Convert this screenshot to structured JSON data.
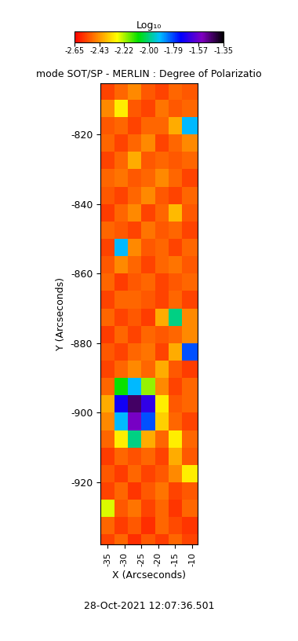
{
  "chart_data": {
    "type": "heatmap",
    "title": "mode SOT/SP - MERLIN : Degree of Polarizatio",
    "xlabel": "X (Arcseconds)",
    "ylabel": "Y (Arcseconds)",
    "annotation": "28-Oct-2021 12:07:36.501",
    "xlim": [
      -37.1,
      -8.4
    ],
    "ylim": [
      -937.8,
      -805.3
    ],
    "xticks": [
      -35,
      -30,
      -25,
      -20,
      -15,
      -10
    ],
    "yticks": [
      -820,
      -840,
      -860,
      -880,
      -900,
      -920
    ],
    "x_edges": [
      -37.1,
      -33,
      -29,
      -25,
      -21,
      -17,
      -13,
      -8.4
    ],
    "y_edges": [
      -937.8,
      -935,
      -930,
      -925,
      -920,
      -915,
      -910,
      -905,
      -900,
      -895,
      -890,
      -885,
      -880,
      -875,
      -870,
      -865,
      -860,
      -855,
      -850,
      -845,
      -840,
      -835,
      -830,
      -825,
      -820,
      -815,
      -810,
      -805.3
    ],
    "values": [
      [
        -2.55,
        -2.5,
        -2.58,
        -2.52,
        -2.56,
        -2.5,
        -2.55
      ],
      [
        -2.5,
        -2.56,
        -2.52,
        -2.58,
        -2.5,
        -2.54,
        -2.57
      ],
      [
        -2.25,
        -2.52,
        -2.48,
        -2.55,
        -2.5,
        -2.57,
        -2.5
      ],
      [
        -2.55,
        -2.5,
        -2.57,
        -2.52,
        -2.48,
        -2.55,
        -2.52
      ],
      [
        -2.52,
        -2.56,
        -2.5,
        -2.55,
        -2.52,
        -2.45,
        -2.3
      ],
      [
        -2.56,
        -2.5,
        -2.53,
        -2.5,
        -2.55,
        -2.4,
        -2.52
      ],
      [
        -2.5,
        -2.3,
        -2.0,
        -2.4,
        -2.5,
        -2.3,
        -2.5
      ],
      [
        -2.45,
        -1.9,
        -1.55,
        -1.8,
        -2.35,
        -2.5,
        -2.55
      ],
      [
        -2.4,
        -1.7,
        -1.45,
        -1.65,
        -2.3,
        -2.52,
        -2.5
      ],
      [
        -2.5,
        -2.1,
        -1.9,
        -2.2,
        -2.45,
        -2.55,
        -2.5
      ],
      [
        -2.55,
        -2.5,
        -2.45,
        -2.5,
        -2.4,
        -2.52,
        -2.56
      ],
      [
        -2.52,
        -2.55,
        -2.5,
        -2.48,
        -2.55,
        -2.4,
        -1.8
      ],
      [
        -2.56,
        -2.5,
        -2.55,
        -2.5,
        -2.52,
        -2.5,
        -2.45
      ],
      [
        -2.5,
        -2.55,
        -2.52,
        -2.56,
        -2.4,
        -2.0,
        -2.45
      ],
      [
        -2.55,
        -2.5,
        -2.5,
        -2.52,
        -2.55,
        -2.5,
        -2.55
      ],
      [
        -2.5,
        -2.56,
        -2.52,
        -2.5,
        -2.55,
        -2.52,
        -2.5
      ],
      [
        -2.52,
        -2.45,
        -2.5,
        -2.55,
        -2.5,
        -2.48,
        -2.52
      ],
      [
        -2.55,
        -1.9,
        -2.45,
        -2.52,
        -2.5,
        -2.55,
        -2.5
      ],
      [
        -2.5,
        -2.52,
        -2.55,
        -2.48,
        -2.52,
        -2.5,
        -2.55
      ],
      [
        -2.56,
        -2.5,
        -2.45,
        -2.55,
        -2.5,
        -2.38,
        -2.52
      ],
      [
        -2.52,
        -2.55,
        -2.5,
        -2.45,
        -2.52,
        -2.55,
        -2.5
      ],
      [
        -2.5,
        -2.48,
        -2.52,
        -2.5,
        -2.45,
        -2.5,
        -2.55
      ],
      [
        -2.55,
        -2.5,
        -2.4,
        -2.52,
        -2.5,
        -2.52,
        -2.5
      ],
      [
        -2.5,
        -2.55,
        -2.5,
        -2.45,
        -2.55,
        -2.5,
        -2.45
      ],
      [
        -2.52,
        -2.5,
        -2.55,
        -2.5,
        -2.5,
        -2.4,
        -1.9
      ],
      [
        -2.45,
        -2.3,
        -2.52,
        -2.55,
        -2.48,
        -2.52,
        -2.5
      ],
      [
        -2.55,
        -2.5,
        -2.45,
        -2.52,
        -2.55,
        -2.5,
        -2.52
      ]
    ],
    "colorbar": {
      "label": "Log₁₀",
      "range": [
        -2.65,
        -1.35
      ],
      "ticks": [
        -2.65,
        -2.43,
        -2.22,
        {
          "value": -2.0,
          "label": "-2.00"
        },
        -1.79,
        -1.57,
        -1.35
      ]
    }
  }
}
